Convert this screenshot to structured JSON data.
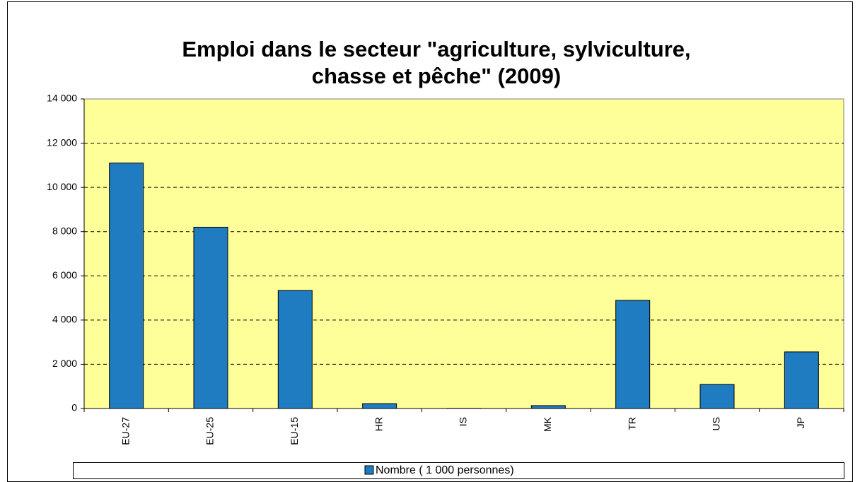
{
  "chart_data": {
    "type": "bar",
    "title": [
      "Emploi dans le secteur \"agriculture, sylviculture,",
      "chasse et pêche\" (2009)"
    ],
    "categories": [
      "EU-27",
      "EU-25",
      "EU-15",
      "HR",
      "IS",
      "MK",
      "TR",
      "US",
      "JP"
    ],
    "series": [
      {
        "name": "Nombre ( 1 000 personnes)",
        "color": "#1f7cc0",
        "values": [
          11100,
          8200,
          5340,
          220,
          6,
          130,
          4890,
          1090,
          2560
        ]
      }
    ],
    "ylim": [
      0,
      14000
    ],
    "yticks": [
      0,
      {
        "value": 2000,
        "label": "2 000"
      },
      {
        "value": 4000,
        "label": "4 000"
      },
      {
        "value": 6000,
        "label": "6 000"
      },
      {
        "value": 8000,
        "label": "8 000"
      },
      {
        "value": 10000,
        "label": "10 000"
      },
      {
        "value": 12000,
        "label": "12 000"
      },
      {
        "value": 14000,
        "label": "14 000"
      }
    ],
    "grid": true,
    "plot_background": "#ffff99",
    "legend": "bottom"
  }
}
